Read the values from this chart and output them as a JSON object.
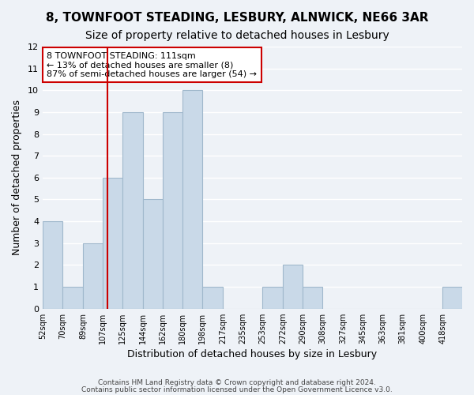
{
  "title": "8, TOWNFOOT STEADING, LESBURY, ALNWICK, NE66 3AR",
  "subtitle": "Size of property relative to detached houses in Lesbury",
  "xlabel": "Distribution of detached houses by size in Lesbury",
  "ylabel": "Number of detached properties",
  "bin_edges": [
    52,
    70,
    89,
    107,
    125,
    144,
    162,
    180,
    198,
    217,
    235,
    253,
    272,
    290,
    308,
    327,
    345,
    363,
    381,
    400,
    418,
    436
  ],
  "bar_heights": [
    4,
    1,
    3,
    6,
    9,
    5,
    9,
    10,
    1,
    0,
    0,
    1,
    2,
    1,
    0,
    0,
    0,
    0,
    0,
    0,
    1
  ],
  "bar_color": "#c9d9e8",
  "bar_edgecolor": "#a0b8cc",
  "ylim": [
    0,
    12
  ],
  "yticks": [
    0,
    1,
    2,
    3,
    4,
    5,
    6,
    7,
    8,
    9,
    10,
    11,
    12
  ],
  "vline_x": 111,
  "vline_color": "#cc0000",
  "annotation_title": "8 TOWNFOOT STEADING: 111sqm",
  "annotation_line1": "← 13% of detached houses are smaller (8)",
  "annotation_line2": "87% of semi-detached houses are larger (54) →",
  "annotation_box_color": "#ffffff",
  "annotation_box_edgecolor": "#cc0000",
  "footer1": "Contains HM Land Registry data © Crown copyright and database right 2024.",
  "footer2": "Contains public sector information licensed under the Open Government Licence v3.0.",
  "background_color": "#eef2f7",
  "grid_color": "#ffffff",
  "title_fontsize": 11,
  "subtitle_fontsize": 10,
  "tick_labels": [
    "52sqm",
    "70sqm",
    "89sqm",
    "107sqm",
    "125sqm",
    "144sqm",
    "162sqm",
    "180sqm",
    "198sqm",
    "217sqm",
    "235sqm",
    "253sqm",
    "272sqm",
    "290sqm",
    "308sqm",
    "327sqm",
    "345sqm",
    "363sqm",
    "381sqm",
    "400sqm",
    "418sqm"
  ]
}
